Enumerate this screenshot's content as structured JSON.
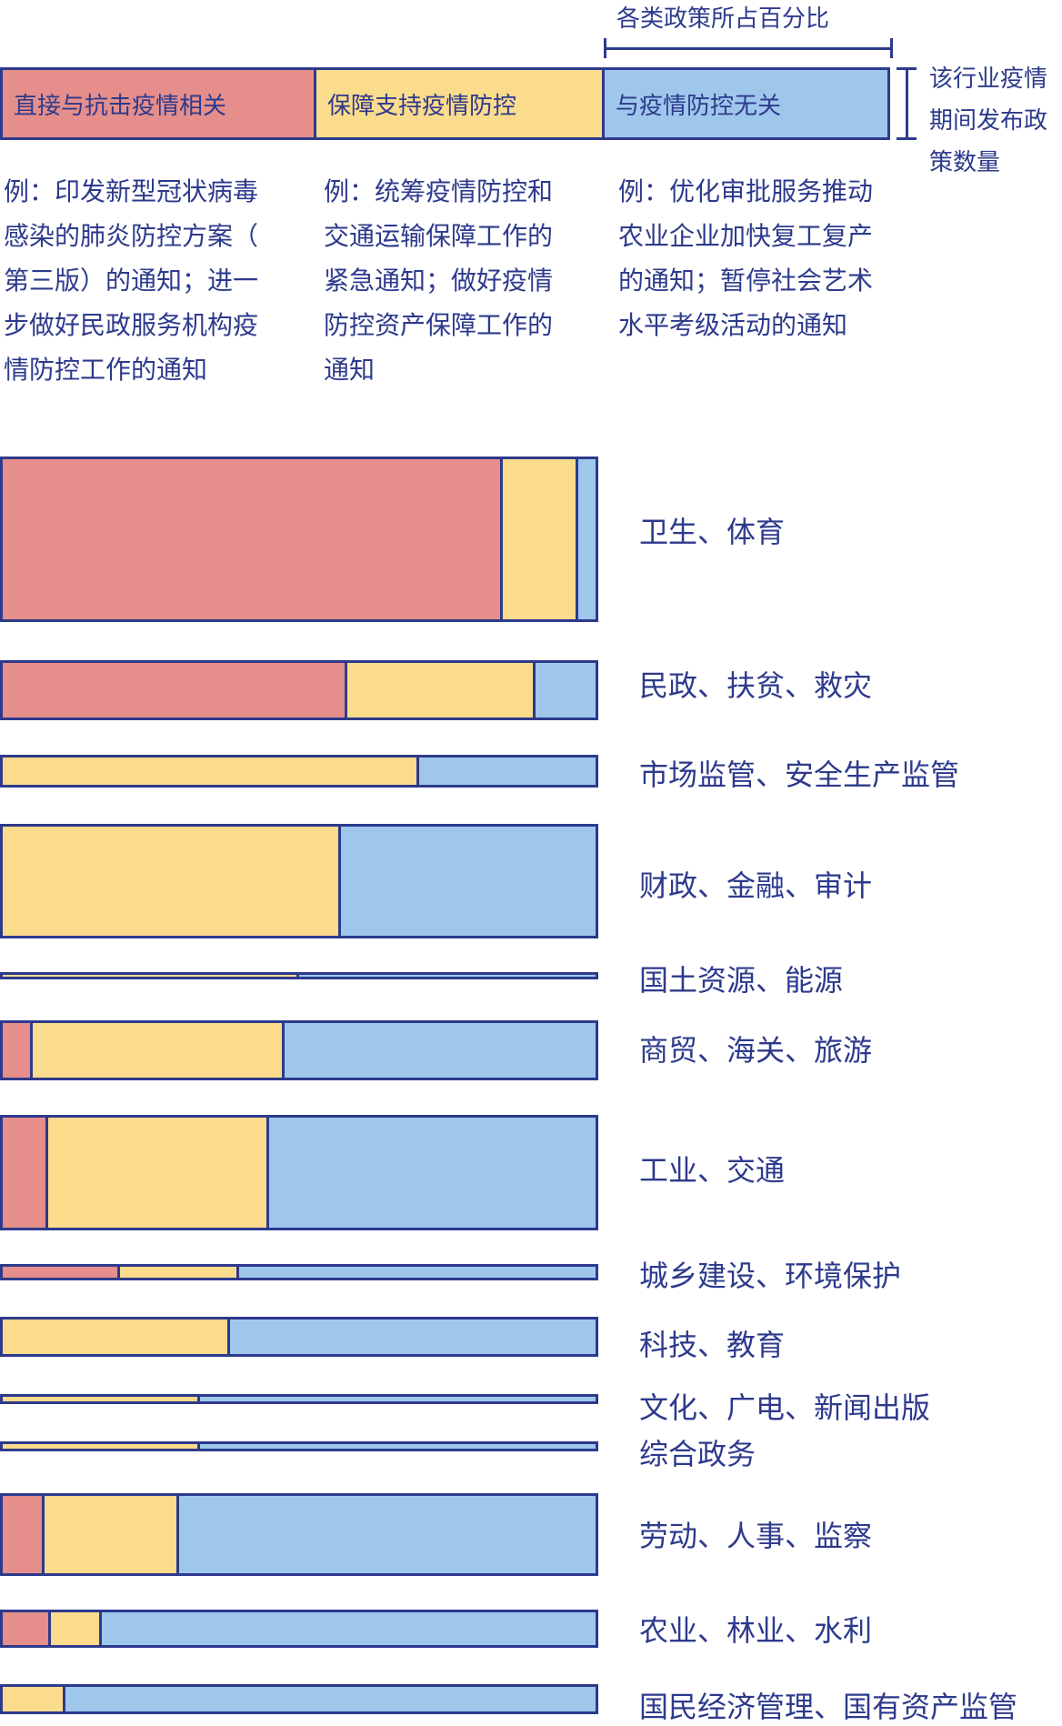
{
  "header": {
    "percent_caption": "各类政策所占百分比",
    "count_caption_lines": [
      "该行业疫情",
      "期间发布政",
      "策数量"
    ]
  },
  "legend": [
    {
      "label": "直接与抗击疫情相关",
      "color": "#e58e8b"
    },
    {
      "label": "保障支持疫情防控",
      "color": "#fbdb8c"
    },
    {
      "label": "与疫情防控无关",
      "color": "#9fc7ec"
    }
  ],
  "examples": [
    {
      "lines": [
        "例：印发新型冠状病毒",
        "感染的肺炎防控方案（",
        "第三版）的通知；进一",
        "步做好民政服务机构疫",
        "情防控工作的通知"
      ]
    },
    {
      "lines": [
        "例：统筹疫情防控和",
        "交通运输保障工作的",
        "紧急通知；做好疫情",
        "防控资产保障工作的",
        "通知"
      ]
    },
    {
      "lines": [
        "例：优化审批服务推动",
        "农业企业加快复工复产",
        "的通知；暂停社会艺术",
        "水平考级活动的通知"
      ]
    }
  ],
  "chart_data": {
    "type": "bar",
    "stacked": true,
    "percent": true,
    "series_names": [
      "直接与抗击疫情相关",
      "保障支持疫情防控",
      "与疫情防控无关"
    ],
    "categories": [
      {
        "label": "卫生、体育",
        "count_rel": 1.0,
        "values": [
          84,
          12.6,
          3.4
        ]
      },
      {
        "label": "民政、扶贫、救灾",
        "count_rel": 0.36,
        "values": [
          58,
          31.5,
          10.5
        ]
      },
      {
        "label": "市场监管、安全生产监管",
        "count_rel": 0.2,
        "values": [
          0,
          70,
          30
        ]
      },
      {
        "label": "财政、金融、审计",
        "count_rel": 0.69,
        "values": [
          0,
          57,
          43
        ]
      },
      {
        "label": "国土资源、能源",
        "count_rel": 0.045,
        "values": [
          0,
          50,
          50
        ]
      },
      {
        "label": "商贸、海关、旅游",
        "count_rel": 0.36,
        "values": [
          5.5,
          42,
          52.5
        ]
      },
      {
        "label": "工业、交通",
        "count_rel": 0.7,
        "values": [
          8,
          37,
          55
        ]
      },
      {
        "label": "城乡建设、环境保护",
        "count_rel": 0.1,
        "values": [
          20,
          20,
          60
        ]
      },
      {
        "label": "科技、教育",
        "count_rel": 0.24,
        "values": [
          0,
          38.5,
          61.5
        ]
      },
      {
        "label": "文化、广电、新闻出版",
        "count_rel": 0.06,
        "values": [
          0,
          33.5,
          66.5
        ]
      },
      {
        "label": "综合政务",
        "count_rel": 0.06,
        "values": [
          0,
          33.5,
          66.5
        ]
      },
      {
        "label": "劳动、人事、监察",
        "count_rel": 0.5,
        "values": [
          7.5,
          22.5,
          70
        ]
      },
      {
        "label": "农业、林业、水利",
        "count_rel": 0.23,
        "values": [
          8.5,
          8.5,
          83
        ]
      },
      {
        "label": "国民经济管理、国有资产监管",
        "count_rel": 0.18,
        "values": [
          0,
          11,
          89
        ]
      }
    ]
  }
}
